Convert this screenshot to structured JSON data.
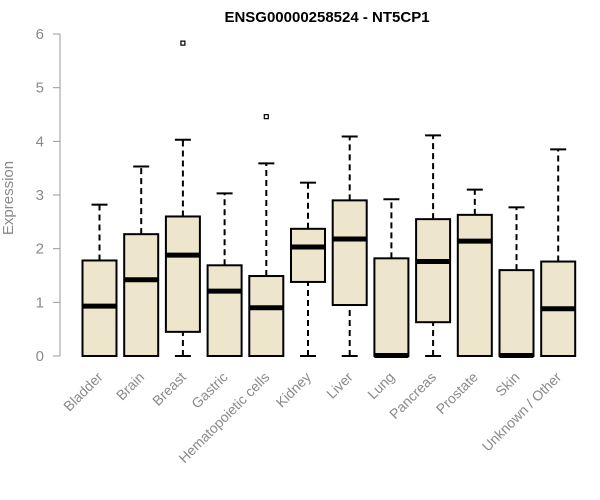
{
  "chart_data": {
    "type": "boxplot",
    "title": "ENSG00000258524 - NT5CP1",
    "xlabel": "",
    "ylabel": "Expression",
    "ylim": [
      0,
      6
    ],
    "yticks": [
      0,
      1,
      2,
      3,
      4,
      5,
      6
    ],
    "box_fill": "#ede6cd",
    "categories": [
      "Bladder",
      "Brain",
      "Breast",
      "Gastric",
      "Hematopoietic cells",
      "Kidney",
      "Liver",
      "Lung",
      "Pancreas",
      "Prostate",
      "Skin",
      "Unknown / Other"
    ],
    "boxes": [
      {
        "min": 0,
        "q1": 0,
        "median": 0.93,
        "q3": 1.78,
        "max": 2.82,
        "outliers": []
      },
      {
        "min": 0,
        "q1": 0,
        "median": 1.42,
        "q3": 2.27,
        "max": 3.53,
        "outliers": []
      },
      {
        "min": 0,
        "q1": 0.45,
        "median": 1.88,
        "q3": 2.6,
        "max": 4.03,
        "outliers": [
          5.83
        ]
      },
      {
        "min": 0,
        "q1": 0,
        "median": 1.21,
        "q3": 1.69,
        "max": 3.03,
        "outliers": []
      },
      {
        "min": 0,
        "q1": 0,
        "median": 0.9,
        "q3": 1.49,
        "max": 3.59,
        "outliers": [
          4.46
        ]
      },
      {
        "min": 0,
        "q1": 1.38,
        "median": 2.03,
        "q3": 2.37,
        "max": 3.23,
        "outliers": []
      },
      {
        "min": 0,
        "q1": 0.95,
        "median": 2.18,
        "q3": 2.9,
        "max": 4.09,
        "outliers": []
      },
      {
        "min": 0,
        "q1": 0,
        "median": 0.01,
        "q3": 1.82,
        "max": 2.92,
        "outliers": []
      },
      {
        "min": 0,
        "q1": 0.63,
        "median": 1.76,
        "q3": 2.55,
        "max": 4.11,
        "outliers": []
      },
      {
        "min": 0,
        "q1": 0,
        "median": 2.14,
        "q3": 2.63,
        "max": 3.1,
        "outliers": []
      },
      {
        "min": 0,
        "q1": 0,
        "median": 0.01,
        "q3": 1.6,
        "max": 2.77,
        "outliers": []
      },
      {
        "min": 0,
        "q1": 0,
        "median": 0.88,
        "q3": 1.76,
        "max": 3.85,
        "outliers": []
      }
    ]
  }
}
